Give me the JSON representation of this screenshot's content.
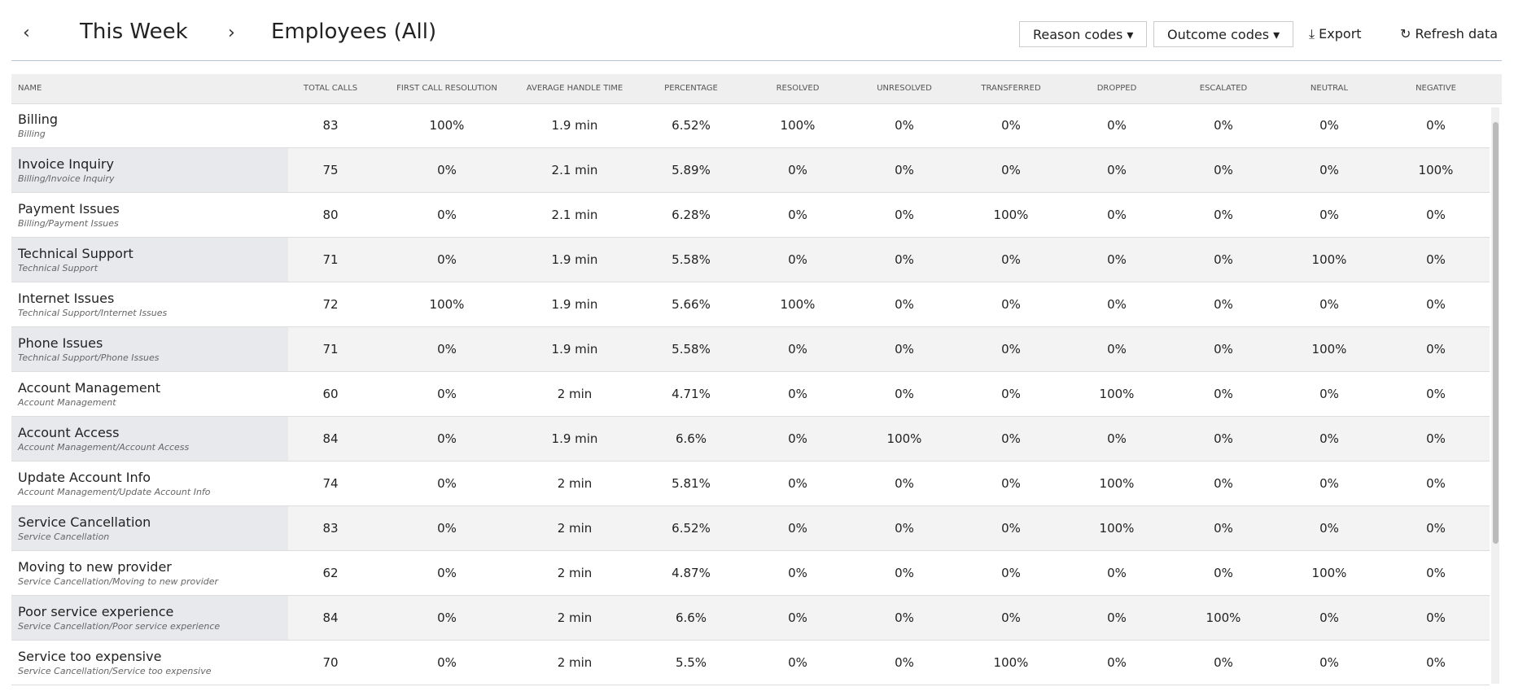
{
  "header": {
    "prev": "‹",
    "period": "This Week",
    "next": "›",
    "title": "Employees (All)",
    "buttons": {
      "reason": "Reason codes",
      "outcome": "Outcome codes",
      "export": "Export",
      "refresh": "Refresh data"
    }
  },
  "table": {
    "columns": [
      "NAME",
      "TOTAL CALLS",
      "FIRST CALL RESOLUTION",
      "AVERAGE HANDLE TIME",
      "PERCENTAGE",
      "RESOLVED",
      "UNRESOLVED",
      "TRANSFERRED",
      "DROPPED",
      "ESCALATED",
      "NEUTRAL",
      "NEGATIVE"
    ],
    "rows": [
      {
        "name": "Billing",
        "path": "Billing",
        "cells": [
          "83",
          "100%",
          "1.9 min",
          "6.52%",
          "100%",
          "0%",
          "0%",
          "0%",
          "0%",
          "0%",
          "0%"
        ]
      },
      {
        "name": "Invoice Inquiry",
        "path": "Billing/Invoice Inquiry",
        "cells": [
          "75",
          "0%",
          "2.1 min",
          "5.89%",
          "0%",
          "0%",
          "0%",
          "0%",
          "0%",
          "0%",
          "100%"
        ]
      },
      {
        "name": "Payment Issues",
        "path": "Billing/Payment Issues",
        "cells": [
          "80",
          "0%",
          "2.1 min",
          "6.28%",
          "0%",
          "0%",
          "100%",
          "0%",
          "0%",
          "0%",
          "0%"
        ]
      },
      {
        "name": "Technical Support",
        "path": "Technical Support",
        "cells": [
          "71",
          "0%",
          "1.9 min",
          "5.58%",
          "0%",
          "0%",
          "0%",
          "0%",
          "0%",
          "100%",
          "0%"
        ]
      },
      {
        "name": "Internet Issues",
        "path": "Technical Support/Internet Issues",
        "cells": [
          "72",
          "100%",
          "1.9 min",
          "5.66%",
          "100%",
          "0%",
          "0%",
          "0%",
          "0%",
          "0%",
          "0%"
        ]
      },
      {
        "name": "Phone Issues",
        "path": "Technical Support/Phone Issues",
        "cells": [
          "71",
          "0%",
          "1.9 min",
          "5.58%",
          "0%",
          "0%",
          "0%",
          "0%",
          "0%",
          "100%",
          "0%"
        ]
      },
      {
        "name": "Account Management",
        "path": "Account Management",
        "cells": [
          "60",
          "0%",
          "2 min",
          "4.71%",
          "0%",
          "0%",
          "0%",
          "100%",
          "0%",
          "0%",
          "0%"
        ]
      },
      {
        "name": "Account Access",
        "path": "Account Management/Account Access",
        "cells": [
          "84",
          "0%",
          "1.9 min",
          "6.6%",
          "0%",
          "100%",
          "0%",
          "0%",
          "0%",
          "0%",
          "0%"
        ]
      },
      {
        "name": "Update Account Info",
        "path": "Account Management/Update Account Info",
        "cells": [
          "74",
          "0%",
          "2 min",
          "5.81%",
          "0%",
          "0%",
          "0%",
          "100%",
          "0%",
          "0%",
          "0%"
        ]
      },
      {
        "name": "Service Cancellation",
        "path": "Service Cancellation",
        "cells": [
          "83",
          "0%",
          "2 min",
          "6.52%",
          "0%",
          "0%",
          "0%",
          "100%",
          "0%",
          "0%",
          "0%"
        ]
      },
      {
        "name": "Moving to new provider",
        "path": "Service Cancellation/Moving to new provider",
        "cells": [
          "62",
          "0%",
          "2 min",
          "4.87%",
          "0%",
          "0%",
          "0%",
          "0%",
          "0%",
          "100%",
          "0%"
        ]
      },
      {
        "name": "Poor service experience",
        "path": "Service Cancellation/Poor service experience",
        "cells": [
          "84",
          "0%",
          "2 min",
          "6.6%",
          "0%",
          "0%",
          "0%",
          "0%",
          "100%",
          "0%",
          "0%"
        ]
      },
      {
        "name": "Service too expensive",
        "path": "Service Cancellation/Service too expensive",
        "cells": [
          "70",
          "0%",
          "2 min",
          "5.5%",
          "0%",
          "0%",
          "100%",
          "0%",
          "0%",
          "0%",
          "0%"
        ]
      }
    ]
  }
}
